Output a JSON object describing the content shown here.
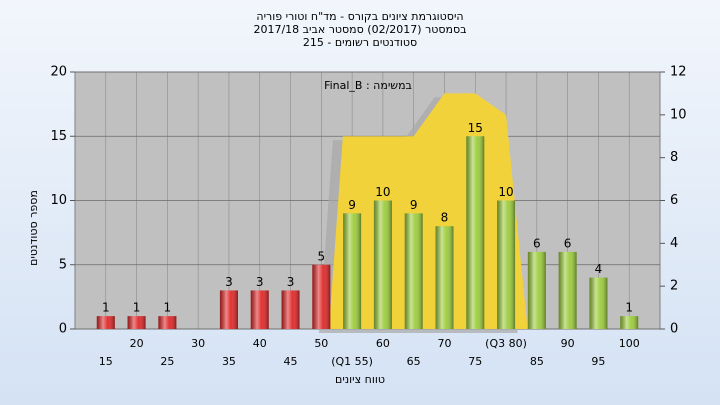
{
  "chart_data": {
    "type": "bar",
    "title": [
      "היסטוגרמת ציונים בקורס - מד\"ח וטורי פוריה",
      "בסמסטר  (02/2017)  סמסטר אביב 2017/18",
      "סטודנטים רשומים - 215"
    ],
    "annotation": "Final_B : במשימה",
    "x_label": "טווח ציונים",
    "y_label": "מספר סטודנטים",
    "categories": [
      "15",
      "20",
      "25",
      "30",
      "35",
      "40",
      "45",
      "50",
      "(Q1 55)",
      "60",
      "65",
      "70",
      "75",
      "(Q3 80)",
      "85",
      "90",
      "95",
      "100"
    ],
    "series": [
      {
        "values": [
          1,
          1,
          1,
          null,
          3,
          3,
          3,
          5,
          9,
          10,
          9,
          8,
          15,
          10,
          6,
          6,
          4,
          1
        ],
        "colors": [
          "#e02828",
          "#e02828",
          "#e02828",
          "#e02828",
          "#e02828",
          "#e02828",
          "#e02828",
          "#e02828",
          "#9ccc3c",
          "#9ccc3c",
          "#9ccc3c",
          "#9ccc3c",
          "#9ccc3c",
          "#9ccc3c",
          "#9ccc3c",
          "#9ccc3c",
          "#9ccc3c",
          "#9ccc3c"
        ]
      },
      {
        "type": "area",
        "axis": "y2",
        "color": "#f2d23a",
        "values": [
          null,
          null,
          null,
          null,
          null,
          null,
          null,
          null,
          9,
          9,
          9,
          11,
          11,
          10,
          null,
          null,
          null,
          null
        ]
      }
    ],
    "ylim": [
      0,
      20
    ],
    "yticks": [
      0,
      5,
      10,
      15,
      20
    ],
    "y2lim": [
      0,
      12
    ],
    "y2ticks": [
      0,
      2,
      4,
      6,
      8,
      10,
      12
    ],
    "grid": true,
    "plot_background": "#c0c0c0"
  }
}
